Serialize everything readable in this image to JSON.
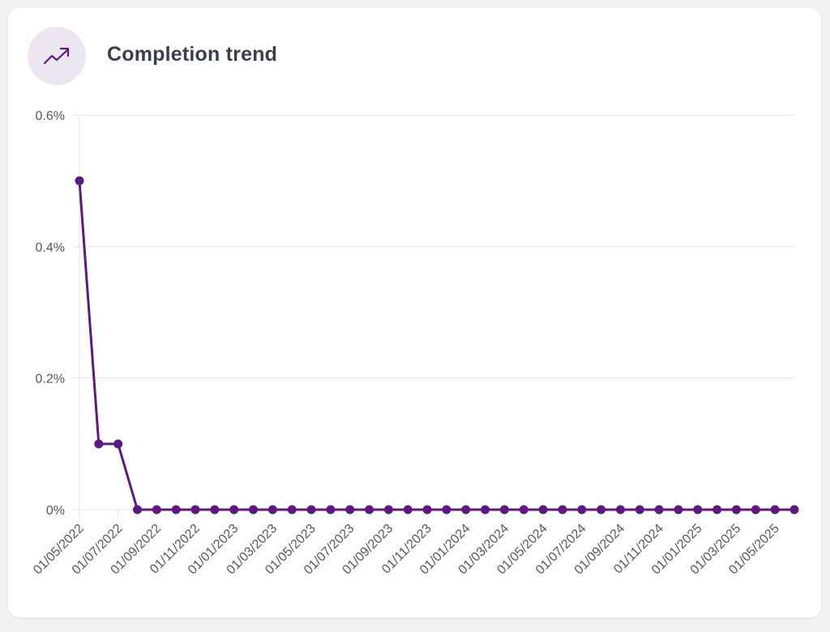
{
  "card": {
    "title": "Completion trend",
    "icon": "trend-up-icon"
  },
  "colors": {
    "series": "#5a1a7e",
    "grid": "#e3e3e6",
    "icon_bg": "#ebe6f0",
    "card_bg": "#ffffff"
  },
  "chart_data": {
    "type": "line",
    "title": "Completion trend",
    "xlabel": "",
    "ylabel": "",
    "y_unit": "%",
    "ylim": [
      0,
      0.6
    ],
    "yticks": [
      "0%",
      "0.2%",
      "0.4%",
      "0.6%"
    ],
    "grid": true,
    "legend": "none",
    "x": [
      "2022-05-01",
      "2022-06-01",
      "2022-07-01",
      "2022-08-01",
      "2022-09-01",
      "2022-10-01",
      "2022-11-01",
      "2022-12-01",
      "2023-01-01",
      "2023-02-01",
      "2023-03-01",
      "2023-04-01",
      "2023-05-01",
      "2023-06-01",
      "2023-07-01",
      "2023-08-01",
      "2023-09-01",
      "2023-10-01",
      "2023-11-01",
      "2023-12-01",
      "2024-01-01",
      "2024-02-01",
      "2024-03-01",
      "2024-04-01",
      "2024-05-01",
      "2024-06-01",
      "2024-07-01",
      "2024-08-01",
      "2024-09-01",
      "2024-10-01",
      "2024-11-01",
      "2024-12-01",
      "2025-01-01",
      "2025-02-01",
      "2025-03-01",
      "2025-04-01",
      "2025-05-01",
      "2025-06-01"
    ],
    "xtick_labels": [
      "01/05/2022",
      "01/07/2022",
      "01/09/2022",
      "01/11/2022",
      "01/01/2023",
      "01/03/2023",
      "01/05/2023",
      "01/07/2023",
      "01/09/2023",
      "01/11/2023",
      "01/01/2024",
      "01/03/2024",
      "01/05/2024",
      "01/07/2024",
      "01/09/2024",
      "01/11/2024",
      "01/01/2025",
      "01/03/2025",
      "01/05/2025"
    ],
    "series": [
      {
        "values": [
          0.5,
          0.1,
          0.1,
          0,
          0,
          0,
          0,
          0,
          0,
          0,
          0,
          0,
          0,
          0,
          0,
          0,
          0,
          0,
          0,
          0,
          0,
          0,
          0,
          0,
          0,
          0,
          0,
          0,
          0,
          0,
          0,
          0,
          0,
          0,
          0,
          0,
          0,
          0
        ]
      }
    ]
  }
}
